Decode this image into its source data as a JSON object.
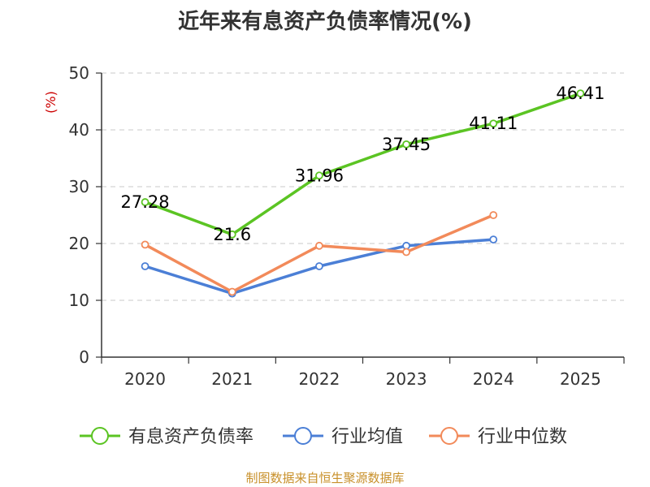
{
  "chart_data": {
    "type": "line",
    "title": "近年来有息资产负债率情况(%)",
    "ylabel": "(%)",
    "xlabel": "",
    "categories": [
      "2020",
      "2021",
      "2022",
      "2023",
      "2024",
      "2025"
    ],
    "ylim": [
      0,
      50
    ],
    "yticks": [
      0,
      10,
      20,
      30,
      40,
      50
    ],
    "grid": true,
    "legend_position": "bottom",
    "series": [
      {
        "name": "有息资产负债率",
        "color": "#5bc423",
        "values": [
          27.28,
          21.6,
          31.96,
          37.45,
          41.11,
          46.41
        ],
        "labels": [
          "27.28",
          "21.6",
          "31.96",
          "37.45",
          "41.11",
          "46.41"
        ]
      },
      {
        "name": "行业均值",
        "color": "#4b7fd6",
        "values": [
          16.0,
          11.2,
          16.0,
          19.6,
          20.7,
          null
        ]
      },
      {
        "name": "行业中位数",
        "color": "#f28a5a",
        "values": [
          19.8,
          11.5,
          19.6,
          18.5,
          25.0,
          null
        ]
      }
    ]
  },
  "source_note": "制图数据来自恒生聚源数据库"
}
